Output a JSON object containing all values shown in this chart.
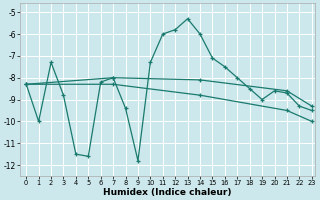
{
  "xlabel": "Humidex (Indice chaleur)",
  "bg_color": "#cce8ec",
  "line_color": "#1a7a6e",
  "grid_color": "#ffffff",
  "xlim": [
    -0.5,
    23.3
  ],
  "ylim": [
    -12.5,
    -4.6
  ],
  "yticks": [
    -5,
    -6,
    -7,
    -8,
    -9,
    -10,
    -11,
    -12
  ],
  "xticks": [
    0,
    1,
    2,
    3,
    4,
    5,
    6,
    7,
    8,
    9,
    10,
    11,
    12,
    13,
    14,
    15,
    16,
    17,
    18,
    19,
    20,
    21,
    22,
    23
  ],
  "series": [
    {
      "x": [
        0,
        1,
        2,
        3,
        4,
        5,
        6,
        7,
        8,
        9,
        10,
        11,
        12,
        13,
        14,
        15,
        16,
        17,
        18,
        19,
        20,
        21,
        22,
        23
      ],
      "y": [
        -8.3,
        -10.0,
        -7.3,
        -8.8,
        -11.5,
        -11.6,
        -8.2,
        -8.0,
        -9.4,
        -11.8,
        -7.3,
        -6.0,
        -5.8,
        -5.3,
        -6.0,
        -7.1,
        -7.5,
        -8.0,
        -8.5,
        -9.0,
        -8.6,
        -8.7,
        -9.3,
        -9.5
      ]
    },
    {
      "x": [
        0,
        7,
        14,
        21,
        23
      ],
      "y": [
        -8.3,
        -8.0,
        -8.1,
        -8.6,
        -9.3
      ]
    },
    {
      "x": [
        0,
        7,
        14,
        21,
        23
      ],
      "y": [
        -8.3,
        -8.3,
        -8.8,
        -9.5,
        -10.0
      ]
    }
  ]
}
